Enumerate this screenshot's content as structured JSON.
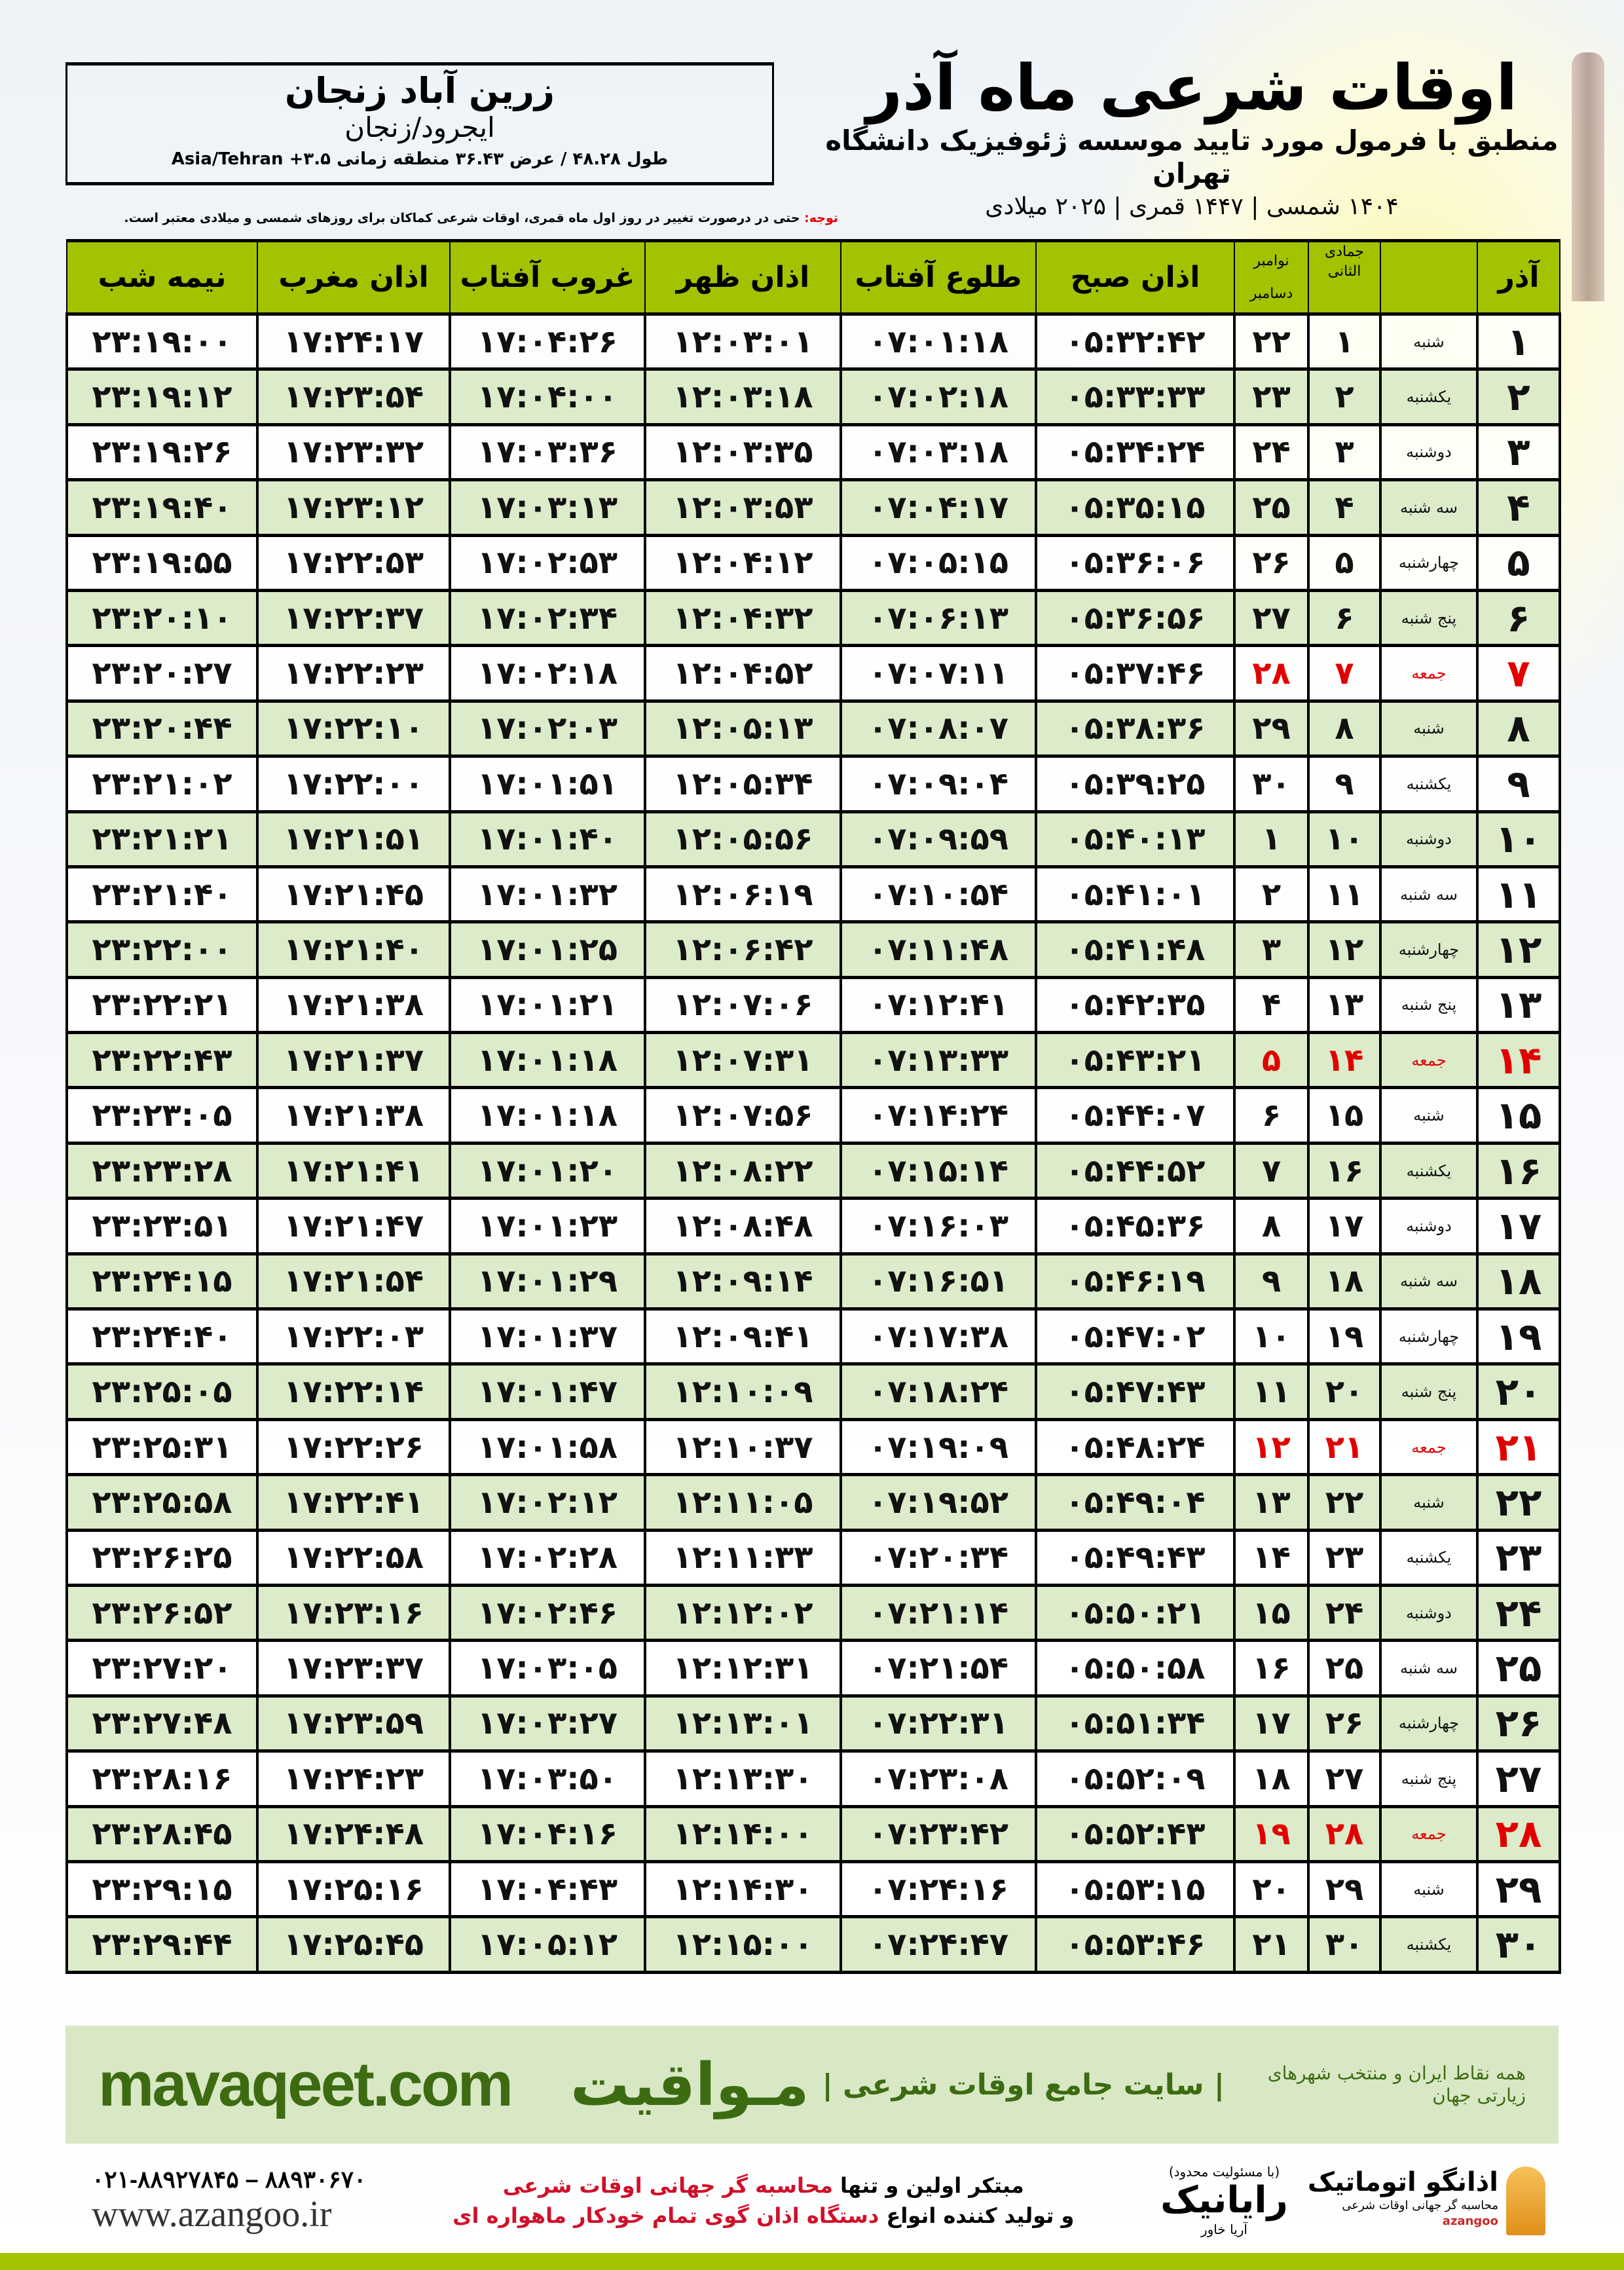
{
  "location": {
    "city": "زرین آباد زنجان",
    "province": "ایجرود/زنجان",
    "coords": "طول ۴۸.۲۸ / عرض ۳۶.۴۳ منطقه زمانی ۳.۵+ Asia/Tehran"
  },
  "header": {
    "title": "اوقات شرعی ماه آذر",
    "subtitle": "منطبق با فرمول مورد تایید موسسه ژئوفیزیک دانشگاه تهران",
    "dates": "۱۴۰۴ شمسی | ۱۴۴۷ قمری | ۲۰۲۵ میلادی"
  },
  "note": {
    "label": "توجه:",
    "text": " حتی در درصورت تغییر در روز اول ماه قمری، اوقات شرعی کماکان برای روزهای شمسی و میلادی معتبر است."
  },
  "table": {
    "columns": {
      "midnight": "نیمه شب",
      "maghrib": "اذان مغرب",
      "sunset": "غروب آفتاب",
      "dhuhr": "اذان ظهر",
      "sunrise": "طلوع آفتاب",
      "fajr": "اذان صبح",
      "gregorian_1": "نوامبر",
      "gregorian_2": "دسامبر",
      "hijri": "جمادی الثانی",
      "month": "آذر"
    },
    "friday_color": "#e00000",
    "rows": [
      {
        "day": "۱",
        "weekday": "شنبه",
        "hijri": "۱",
        "greg": "۲۲",
        "fajr": "۰۵:۳۲:۴۲",
        "sunrise": "۰۷:۰۱:۱۸",
        "dhuhr": "۱۲:۰۳:۰۱",
        "sunset": "۱۷:۰۴:۲۶",
        "maghrib": "۱۷:۲۴:۱۷",
        "midnight": "۲۳:۱۹:۰۰"
      },
      {
        "day": "۲",
        "weekday": "یکشنبه",
        "hijri": "۲",
        "greg": "۲۳",
        "fajr": "۰۵:۳۳:۳۳",
        "sunrise": "۰۷:۰۲:۱۸",
        "dhuhr": "۱۲:۰۳:۱۸",
        "sunset": "۱۷:۰۴:۰۰",
        "maghrib": "۱۷:۲۳:۵۴",
        "midnight": "۲۳:۱۹:۱۲"
      },
      {
        "day": "۳",
        "weekday": "دوشنبه",
        "hijri": "۳",
        "greg": "۲۴",
        "fajr": "۰۵:۳۴:۲۴",
        "sunrise": "۰۷:۰۳:۱۸",
        "dhuhr": "۱۲:۰۳:۳۵",
        "sunset": "۱۷:۰۳:۳۶",
        "maghrib": "۱۷:۲۳:۳۲",
        "midnight": "۲۳:۱۹:۲۶"
      },
      {
        "day": "۴",
        "weekday": "سه شنبه",
        "hijri": "۴",
        "greg": "۲۵",
        "fajr": "۰۵:۳۵:۱۵",
        "sunrise": "۰۷:۰۴:۱۷",
        "dhuhr": "۱۲:۰۳:۵۳",
        "sunset": "۱۷:۰۳:۱۳",
        "maghrib": "۱۷:۲۳:۱۲",
        "midnight": "۲۳:۱۹:۴۰"
      },
      {
        "day": "۵",
        "weekday": "چهارشنبه",
        "hijri": "۵",
        "greg": "۲۶",
        "fajr": "۰۵:۳۶:۰۶",
        "sunrise": "۰۷:۰۵:۱۵",
        "dhuhr": "۱۲:۰۴:۱۲",
        "sunset": "۱۷:۰۲:۵۳",
        "maghrib": "۱۷:۲۲:۵۳",
        "midnight": "۲۳:۱۹:۵۵"
      },
      {
        "day": "۶",
        "weekday": "پنج شنبه",
        "hijri": "۶",
        "greg": "۲۷",
        "fajr": "۰۵:۳۶:۵۶",
        "sunrise": "۰۷:۰۶:۱۳",
        "dhuhr": "۱۲:۰۴:۳۲",
        "sunset": "۱۷:۰۲:۳۴",
        "maghrib": "۱۷:۲۲:۳۷",
        "midnight": "۲۳:۲۰:۱۰"
      },
      {
        "day": "۷",
        "weekday": "جمعه",
        "hijri": "۷",
        "greg": "۲۸",
        "fajr": "۰۵:۳۷:۴۶",
        "sunrise": "۰۷:۰۷:۱۱",
        "dhuhr": "۱۲:۰۴:۵۲",
        "sunset": "۱۷:۰۲:۱۸",
        "maghrib": "۱۷:۲۲:۲۳",
        "midnight": "۲۳:۲۰:۲۷"
      },
      {
        "day": "۸",
        "weekday": "شنبه",
        "hijri": "۸",
        "greg": "۲۹",
        "fajr": "۰۵:۳۸:۳۶",
        "sunrise": "۰۷:۰۸:۰۷",
        "dhuhr": "۱۲:۰۵:۱۳",
        "sunset": "۱۷:۰۲:۰۳",
        "maghrib": "۱۷:۲۲:۱۰",
        "midnight": "۲۳:۲۰:۴۴"
      },
      {
        "day": "۹",
        "weekday": "یکشنبه",
        "hijri": "۹",
        "greg": "۳۰",
        "fajr": "۰۵:۳۹:۲۵",
        "sunrise": "۰۷:۰۹:۰۴",
        "dhuhr": "۱۲:۰۵:۳۴",
        "sunset": "۱۷:۰۱:۵۱",
        "maghrib": "۱۷:۲۲:۰۰",
        "midnight": "۲۳:۲۱:۰۲"
      },
      {
        "day": "۱۰",
        "weekday": "دوشنبه",
        "hijri": "۱۰",
        "greg": "۱",
        "fajr": "۰۵:۴۰:۱۳",
        "sunrise": "۰۷:۰۹:۵۹",
        "dhuhr": "۱۲:۰۵:۵۶",
        "sunset": "۱۷:۰۱:۴۰",
        "maghrib": "۱۷:۲۱:۵۱",
        "midnight": "۲۳:۲۱:۲۱"
      },
      {
        "day": "۱۱",
        "weekday": "سه شنبه",
        "hijri": "۱۱",
        "greg": "۲",
        "fajr": "۰۵:۴۱:۰۱",
        "sunrise": "۰۷:۱۰:۵۴",
        "dhuhr": "۱۲:۰۶:۱۹",
        "sunset": "۱۷:۰۱:۳۲",
        "maghrib": "۱۷:۲۱:۴۵",
        "midnight": "۲۳:۲۱:۴۰"
      },
      {
        "day": "۱۲",
        "weekday": "چهارشنبه",
        "hijri": "۱۲",
        "greg": "۳",
        "fajr": "۰۵:۴۱:۴۸",
        "sunrise": "۰۷:۱۱:۴۸",
        "dhuhr": "۱۲:۰۶:۴۲",
        "sunset": "۱۷:۰۱:۲۵",
        "maghrib": "۱۷:۲۱:۴۰",
        "midnight": "۲۳:۲۲:۰۰"
      },
      {
        "day": "۱۳",
        "weekday": "پنج شنبه",
        "hijri": "۱۳",
        "greg": "۴",
        "fajr": "۰۵:۴۲:۳۵",
        "sunrise": "۰۷:۱۲:۴۱",
        "dhuhr": "۱۲:۰۷:۰۶",
        "sunset": "۱۷:۰۱:۲۱",
        "maghrib": "۱۷:۲۱:۳۸",
        "midnight": "۲۳:۲۲:۲۱"
      },
      {
        "day": "۱۴",
        "weekday": "جمعه",
        "hijri": "۱۴",
        "greg": "۵",
        "fajr": "۰۵:۴۳:۲۱",
        "sunrise": "۰۷:۱۳:۳۳",
        "dhuhr": "۱۲:۰۷:۳۱",
        "sunset": "۱۷:۰۱:۱۸",
        "maghrib": "۱۷:۲۱:۳۷",
        "midnight": "۲۳:۲۲:۴۳"
      },
      {
        "day": "۱۵",
        "weekday": "شنبه",
        "hijri": "۱۵",
        "greg": "۶",
        "fajr": "۰۵:۴۴:۰۷",
        "sunrise": "۰۷:۱۴:۲۴",
        "dhuhr": "۱۲:۰۷:۵۶",
        "sunset": "۱۷:۰۱:۱۸",
        "maghrib": "۱۷:۲۱:۳۸",
        "midnight": "۲۳:۲۳:۰۵"
      },
      {
        "day": "۱۶",
        "weekday": "یکشنبه",
        "hijri": "۱۶",
        "greg": "۷",
        "fajr": "۰۵:۴۴:۵۲",
        "sunrise": "۰۷:۱۵:۱۴",
        "dhuhr": "۱۲:۰۸:۲۲",
        "sunset": "۱۷:۰۱:۲۰",
        "maghrib": "۱۷:۲۱:۴۱",
        "midnight": "۲۳:۲۳:۲۸"
      },
      {
        "day": "۱۷",
        "weekday": "دوشنبه",
        "hijri": "۱۷",
        "greg": "۸",
        "fajr": "۰۵:۴۵:۳۶",
        "sunrise": "۰۷:۱۶:۰۳",
        "dhuhr": "۱۲:۰۸:۴۸",
        "sunset": "۱۷:۰۱:۲۳",
        "maghrib": "۱۷:۲۱:۴۷",
        "midnight": "۲۳:۲۳:۵۱"
      },
      {
        "day": "۱۸",
        "weekday": "سه شنبه",
        "hijri": "۱۸",
        "greg": "۹",
        "fajr": "۰۵:۴۶:۱۹",
        "sunrise": "۰۷:۱۶:۵۱",
        "dhuhr": "۱۲:۰۹:۱۴",
        "sunset": "۱۷:۰۱:۲۹",
        "maghrib": "۱۷:۲۱:۵۴",
        "midnight": "۲۳:۲۴:۱۵"
      },
      {
        "day": "۱۹",
        "weekday": "چهارشنبه",
        "hijri": "۱۹",
        "greg": "۱۰",
        "fajr": "۰۵:۴۷:۰۲",
        "sunrise": "۰۷:۱۷:۳۸",
        "dhuhr": "۱۲:۰۹:۴۱",
        "sunset": "۱۷:۰۱:۳۷",
        "maghrib": "۱۷:۲۲:۰۳",
        "midnight": "۲۳:۲۴:۴۰"
      },
      {
        "day": "۲۰",
        "weekday": "پنج شنبه",
        "hijri": "۲۰",
        "greg": "۱۱",
        "fajr": "۰۵:۴۷:۴۳",
        "sunrise": "۰۷:۱۸:۲۴",
        "dhuhr": "۱۲:۱۰:۰۹",
        "sunset": "۱۷:۰۱:۴۷",
        "maghrib": "۱۷:۲۲:۱۴",
        "midnight": "۲۳:۲۵:۰۵"
      },
      {
        "day": "۲۱",
        "weekday": "جمعه",
        "hijri": "۲۱",
        "greg": "۱۲",
        "fajr": "۰۵:۴۸:۲۴",
        "sunrise": "۰۷:۱۹:۰۹",
        "dhuhr": "۱۲:۱۰:۳۷",
        "sunset": "۱۷:۰۱:۵۸",
        "maghrib": "۱۷:۲۲:۲۶",
        "midnight": "۲۳:۲۵:۳۱"
      },
      {
        "day": "۲۲",
        "weekday": "شنبه",
        "hijri": "۲۲",
        "greg": "۱۳",
        "fajr": "۰۵:۴۹:۰۴",
        "sunrise": "۰۷:۱۹:۵۲",
        "dhuhr": "۱۲:۱۱:۰۵",
        "sunset": "۱۷:۰۲:۱۲",
        "maghrib": "۱۷:۲۲:۴۱",
        "midnight": "۲۳:۲۵:۵۸"
      },
      {
        "day": "۲۳",
        "weekday": "یکشنبه",
        "hijri": "۲۳",
        "greg": "۱۴",
        "fajr": "۰۵:۴۹:۴۳",
        "sunrise": "۰۷:۲۰:۳۴",
        "dhuhr": "۱۲:۱۱:۳۳",
        "sunset": "۱۷:۰۲:۲۸",
        "maghrib": "۱۷:۲۲:۵۸",
        "midnight": "۲۳:۲۶:۲۵"
      },
      {
        "day": "۲۴",
        "weekday": "دوشنبه",
        "hijri": "۲۴",
        "greg": "۱۵",
        "fajr": "۰۵:۵۰:۲۱",
        "sunrise": "۰۷:۲۱:۱۴",
        "dhuhr": "۱۲:۱۲:۰۲",
        "sunset": "۱۷:۰۲:۴۶",
        "maghrib": "۱۷:۲۳:۱۶",
        "midnight": "۲۳:۲۶:۵۲"
      },
      {
        "day": "۲۵",
        "weekday": "سه شنبه",
        "hijri": "۲۵",
        "greg": "۱۶",
        "fajr": "۰۵:۵۰:۵۸",
        "sunrise": "۰۷:۲۱:۵۴",
        "dhuhr": "۱۲:۱۲:۳۱",
        "sunset": "۱۷:۰۳:۰۵",
        "maghrib": "۱۷:۲۳:۳۷",
        "midnight": "۲۳:۲۷:۲۰"
      },
      {
        "day": "۲۶",
        "weekday": "چهارشنبه",
        "hijri": "۲۶",
        "greg": "۱۷",
        "fajr": "۰۵:۵۱:۳۴",
        "sunrise": "۰۷:۲۲:۳۱",
        "dhuhr": "۱۲:۱۳:۰۱",
        "sunset": "۱۷:۰۳:۲۷",
        "maghrib": "۱۷:۲۳:۵۹",
        "midnight": "۲۳:۲۷:۴۸"
      },
      {
        "day": "۲۷",
        "weekday": "پنج شنبه",
        "hijri": "۲۷",
        "greg": "۱۸",
        "fajr": "۰۵:۵۲:۰۹",
        "sunrise": "۰۷:۲۳:۰۸",
        "dhuhr": "۱۲:۱۳:۳۰",
        "sunset": "۱۷:۰۳:۵۰",
        "maghrib": "۱۷:۲۴:۲۳",
        "midnight": "۲۳:۲۸:۱۶"
      },
      {
        "day": "۲۸",
        "weekday": "جمعه",
        "hijri": "۲۸",
        "greg": "۱۹",
        "fajr": "۰۵:۵۲:۴۳",
        "sunrise": "۰۷:۲۳:۴۲",
        "dhuhr": "۱۲:۱۴:۰۰",
        "sunset": "۱۷:۰۴:۱۶",
        "maghrib": "۱۷:۲۴:۴۸",
        "midnight": "۲۳:۲۸:۴۵"
      },
      {
        "day": "۲۹",
        "weekday": "شنبه",
        "hijri": "۲۹",
        "greg": "۲۰",
        "fajr": "۰۵:۵۳:۱۵",
        "sunrise": "۰۷:۲۴:۱۶",
        "dhuhr": "۱۲:۱۴:۳۰",
        "sunset": "۱۷:۰۴:۴۳",
        "maghrib": "۱۷:۲۵:۱۶",
        "midnight": "۲۳:۲۹:۱۵"
      },
      {
        "day": "۳۰",
        "weekday": "یکشنبه",
        "hijri": "۳۰",
        "greg": "۲۱",
        "fajr": "۰۵:۵۳:۴۶",
        "sunrise": "۰۷:۲۴:۴۷",
        "dhuhr": "۱۲:۱۵:۰۰",
        "sunset": "۱۷:۰۵:۱۲",
        "maghrib": "۱۷:۲۵:۴۵",
        "midnight": "۲۳:۲۹:۴۴"
      }
    ]
  },
  "footer": {
    "brand": "مـواقیت",
    "slogan": "| سایت جامع اوقات شرعی |",
    "slogan2": "همه نقاط ایران و منتخب شهرهای زیارتی جهان",
    "site": "mavaqeet.com",
    "phone": "۰۲۱-۸۸۹۲۷۸۴۵ – ۸۸۹۳۰۶۷۰",
    "web": "www.azangoo.ir",
    "promo_1a": "مبتکر اولین و تنها ",
    "promo_1b": "محاسبه گر جهانی اوقات شرعی",
    "promo_2a": "و تولید کننده انواع ",
    "promo_2b": "دستگاه اذان گوی تمام خودکار ماهواره ای",
    "logo_rayanik": "رایانیک",
    "logo_rayanik_sub": "آریا خاور",
    "logo_rayanik_tag": "(با مسئولیت محدود)",
    "logo_azangoo": "اذانگو اتوماتیک",
    "logo_azangoo_tag": "محاسبه گر جهانی اوقات شرعی",
    "logo_azangoo_en": "azangoo",
    "accent": "#a3c200",
    "brand_color": "#3d6b12"
  }
}
